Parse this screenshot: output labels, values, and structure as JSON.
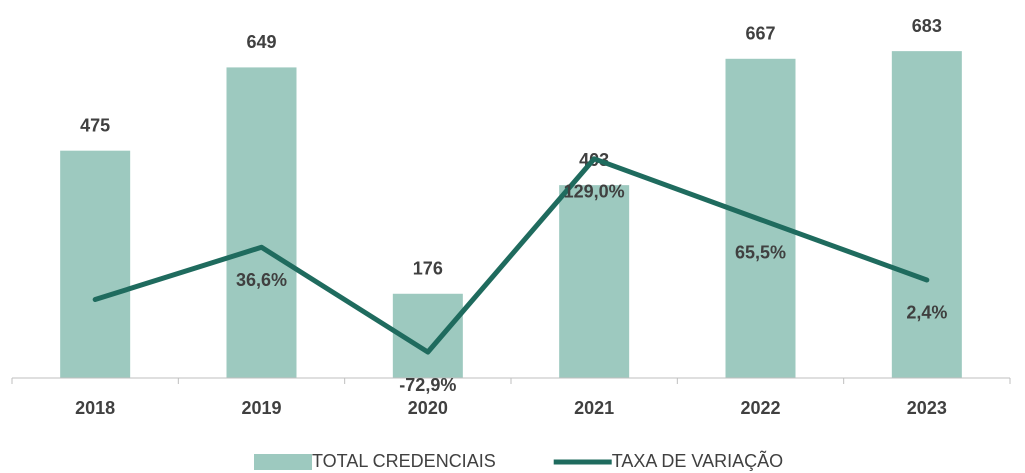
{
  "chart_data": {
    "type": "bar-line",
    "categories": [
      "2018",
      "2019",
      "2020",
      "2021",
      "2022",
      "2023"
    ],
    "ylim": [
      0,
      700
    ],
    "y2lim": [
      -100,
      250
    ],
    "series": [
      {
        "name": "TOTAL CREDENCIAIS",
        "type": "bar",
        "color": "#9dc9bf",
        "values": [
          475,
          649,
          176,
          403,
          667,
          683
        ]
      },
      {
        "name": "TAXA DE VARIAÇÃO",
        "type": "line",
        "axis": "y2",
        "color": "#1f6b5e",
        "values": [
          -18,
          36.6,
          -72.9,
          129.0,
          65.5,
          2.4
        ],
        "value_labels": [
          null,
          "36,6%",
          "-72,9%",
          "129,0%",
          "65,5%",
          "2,4%"
        ]
      }
    ],
    "legend": "bottom"
  }
}
